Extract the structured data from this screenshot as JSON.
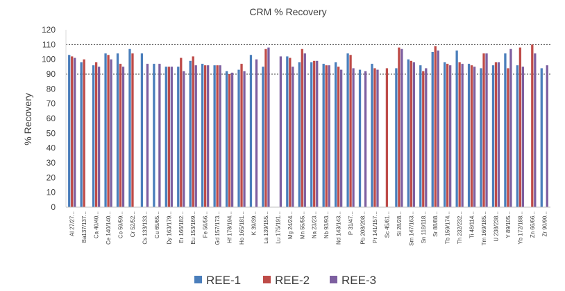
{
  "chart_data": {
    "type": "bar",
    "title": "CRM % Recovery",
    "xlabel": "",
    "ylabel": "% Recovery",
    "ylim": [
      0,
      120
    ],
    "yticks": [
      0,
      10,
      20,
      30,
      40,
      50,
      60,
      70,
      80,
      90,
      100,
      110,
      120
    ],
    "reference_lines": [
      90,
      110
    ],
    "legend_position": "bottom",
    "colors": {
      "REE-1": "#4a7ebb",
      "REE-2": "#be4b48",
      "REE-3": "#7d5fa0"
    },
    "categories": [
      "Al 27/27...",
      "Ba137/137...",
      "Ca 40/40...",
      "Ce 140/140...",
      "Co 59/59...",
      "Cr 52/52...",
      "Cs 133/133...",
      "Cu 65/65...",
      "Dy 163/179...",
      "Er 166/182...",
      "Eu 153/169...",
      "Fe 56/56...",
      "Gd 157/173...",
      "Hf 178/194...",
      "Ho 165/181...",
      "K 39/39...",
      "La 139/155...",
      "Lu 175/191...",
      "Mg 24/24...",
      "Mn 55/55...",
      "Na 23/23...",
      "Nb 93/93...",
      "Nd 143/143...",
      "P 31/47...",
      "Pb 208/208...",
      "Pr 141/157...",
      "Sc 45/61...",
      "Si 28/28...",
      "Sm 147/163...",
      "Sn 118/118...",
      "Sr 88/88...",
      "Tb 159/174...",
      "Th 232/232...",
      "Ti 48/114...",
      "Tm 169/185...",
      "U 238/238...",
      "Y 89/105...",
      "Yb 172/188...",
      "Zn 66/66...",
      "Zr 90/90..."
    ],
    "series": [
      {
        "name": "REE-1",
        "values": [
          103,
          98,
          96,
          104,
          104,
          107,
          104,
          97,
          95,
          95,
          99,
          97,
          96,
          92,
          93,
          103,
          95,
          null,
          102,
          98,
          98,
          97,
          98,
          104,
          93,
          97,
          null,
          94,
          100,
          96,
          105,
          98,
          106,
          97,
          94,
          96,
          104,
          96,
          null,
          94
        ]
      },
      {
        "name": "REE-2",
        "values": [
          102,
          100,
          98,
          103,
          97,
          104,
          null,
          null,
          95,
          101,
          102,
          96,
          96,
          90,
          97,
          null,
          107,
          null,
          101,
          107,
          99,
          96,
          95,
          103,
          null,
          94,
          94,
          108,
          99,
          92,
          109,
          97,
          98,
          96,
          104,
          98,
          94,
          108,
          110,
          null
        ]
      },
      {
        "name": "REE-3",
        "values": [
          101,
          null,
          95,
          100,
          95,
          null,
          97,
          97,
          95,
          92,
          96,
          96,
          96,
          91,
          92,
          100,
          108,
          102,
          95,
          104,
          99,
          96,
          93,
          94,
          92,
          93,
          null,
          107,
          98,
          94,
          106,
          96,
          97,
          95,
          104,
          98,
          107,
          95,
          104,
          96
        ]
      }
    ]
  }
}
